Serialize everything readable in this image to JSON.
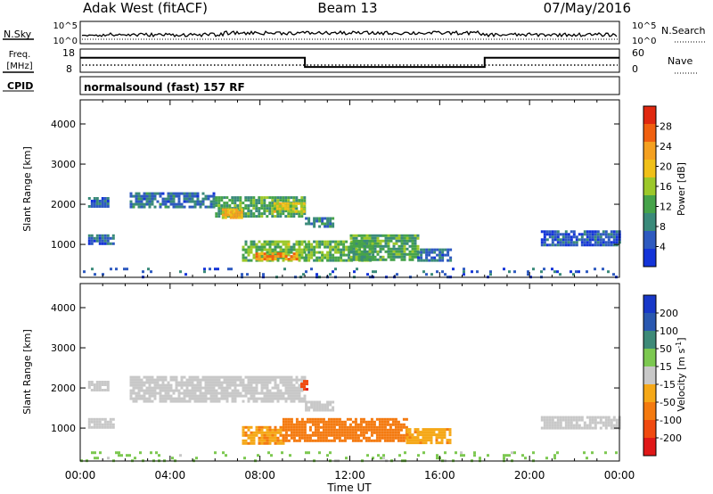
{
  "header": {
    "station": "Adak West (fitACF)",
    "beam": "Beam 13",
    "date": "07/May/2016"
  },
  "panel_labels": {
    "nsky": "N.Sky",
    "nsearch": "N.Search",
    "freq_line1": "Freq.",
    "freq_line2": "[MHz]",
    "nave": "Nave",
    "cpid": "CPID",
    "program": "normalsound (fast) 157 RF"
  },
  "small_ticks": {
    "nsky_left": [
      "10^5",
      "10^0"
    ],
    "nsky_right": [
      "10^5",
      "10^0"
    ],
    "freq_left": [
      "18",
      "8"
    ],
    "nave_right": [
      "60",
      "0"
    ]
  },
  "colors": {
    "power": [
      "#1434d8",
      "#2e5ac0",
      "#3a8a7a",
      "#46a34a",
      "#9cc82a",
      "#f0c018",
      "#f4a020",
      "#f06010",
      "#e02810"
    ],
    "velocity": [
      "#e01818",
      "#f04a10",
      "#f47a10",
      "#f5a818",
      "#c8c8c8",
      "#7cc850",
      "#3e8a78",
      "#2a58b0",
      "#1838c8"
    ]
  },
  "chart_data": [
    {
      "type": "heatmap",
      "name_hint": "power",
      "x": {
        "label": "Time UT",
        "ticks": [
          "00:00",
          "04:00",
          "08:00",
          "12:00",
          "16:00",
          "20:00",
          "00:00"
        ],
        "range_hours": [
          0,
          24
        ]
      },
      "y": {
        "label": "Slant Range [km]",
        "ticks": [
          1000,
          2000,
          3000,
          4000
        ],
        "range": [
          180,
          4600
        ]
      },
      "colorbar": {
        "label": "Power [dB]",
        "ticks": [
          4,
          8,
          12,
          16,
          20,
          24,
          28
        ],
        "range": [
          0,
          32
        ]
      },
      "regions": [
        {
          "t0": 0.35,
          "t1": 1.3,
          "r0": 1950,
          "r1": 2180,
          "p": 6
        },
        {
          "t0": 2.2,
          "t1": 6.0,
          "r0": 1950,
          "r1": 2300,
          "p": 7
        },
        {
          "t0": 6.0,
          "t1": 10.0,
          "r0": 1700,
          "r1": 2200,
          "p": 12
        },
        {
          "t0": 6.3,
          "t1": 7.2,
          "r0": 1650,
          "r1": 1900,
          "p": 21
        },
        {
          "t0": 8.6,
          "t1": 10.0,
          "r0": 1850,
          "r1": 2050,
          "p": 18
        },
        {
          "t0": 10.0,
          "t1": 11.2,
          "r0": 1450,
          "r1": 1680,
          "p": 8
        },
        {
          "t0": 0.35,
          "t1": 1.5,
          "r0": 1050,
          "r1": 1250,
          "p": 6
        },
        {
          "t0": 7.2,
          "t1": 10.0,
          "r0": 620,
          "r1": 1100,
          "p": 14
        },
        {
          "t0": 7.8,
          "t1": 9.6,
          "r0": 620,
          "r1": 800,
          "p": 23
        },
        {
          "t0": 10.0,
          "t1": 13.0,
          "r0": 620,
          "r1": 1100,
          "p": 13
        },
        {
          "t0": 12.0,
          "t1": 15.0,
          "r0": 650,
          "r1": 1250,
          "p": 12
        },
        {
          "t0": 15.0,
          "t1": 16.5,
          "r0": 600,
          "r1": 900,
          "p": 7
        },
        {
          "t0": 20.5,
          "t1": 24.0,
          "r0": 1000,
          "r1": 1350,
          "p": 5
        },
        {
          "t0": 0.0,
          "t1": 24.0,
          "r0": 200,
          "r1": 420,
          "p": 5
        }
      ]
    },
    {
      "type": "heatmap",
      "name_hint": "velocity",
      "x": {
        "label": "Time UT",
        "ticks": [
          "00:00",
          "04:00",
          "08:00",
          "12:00",
          "16:00",
          "20:00",
          "00:00"
        ],
        "range_hours": [
          0,
          24
        ]
      },
      "y": {
        "label": "Slant Range [km]",
        "ticks": [
          1000,
          2000,
          3000,
          4000
        ],
        "range": [
          180,
          4600
        ]
      },
      "colorbar": {
        "label": "Velocity [m s^-1]",
        "ticks": [
          -200,
          -100,
          -50,
          -15,
          15,
          50,
          100,
          200
        ],
        "range": [
          -250,
          250
        ]
      },
      "regions": [
        {
          "t0": 0.35,
          "t1": 1.3,
          "r0": 1950,
          "r1": 2180,
          "v": 0
        },
        {
          "t0": 2.2,
          "t1": 10.0,
          "r0": 1700,
          "r1": 2300,
          "v": 0
        },
        {
          "t0": 9.8,
          "t1": 10.1,
          "r0": 1950,
          "r1": 2200,
          "v": -190
        },
        {
          "t0": 10.0,
          "t1": 11.2,
          "r0": 1450,
          "r1": 1680,
          "v": 0
        },
        {
          "t0": 0.35,
          "t1": 1.5,
          "r0": 1050,
          "r1": 1250,
          "v": 0
        },
        {
          "t0": 7.2,
          "t1": 9.0,
          "r0": 650,
          "r1": 1050,
          "v": -45
        },
        {
          "t0": 9.0,
          "t1": 14.5,
          "r0": 700,
          "r1": 1250,
          "v": -65
        },
        {
          "t0": 14.5,
          "t1": 16.5,
          "r0": 650,
          "r1": 1000,
          "v": -40
        },
        {
          "t0": 20.5,
          "t1": 24.0,
          "r0": 1000,
          "r1": 1300,
          "v": 0
        },
        {
          "t0": 0.0,
          "t1": 24.0,
          "r0": 200,
          "r1": 420,
          "v": 25
        }
      ]
    }
  ],
  "freq_trace": [
    {
      "t": 0,
      "f": 14.8
    },
    {
      "t": 10.0,
      "f": 14.8
    },
    {
      "t": 10.0,
      "f": 9.2
    },
    {
      "t": 18.0,
      "f": 9.2
    },
    {
      "t": 18.0,
      "f": 14.8
    },
    {
      "t": 24,
      "f": 14.8
    }
  ]
}
